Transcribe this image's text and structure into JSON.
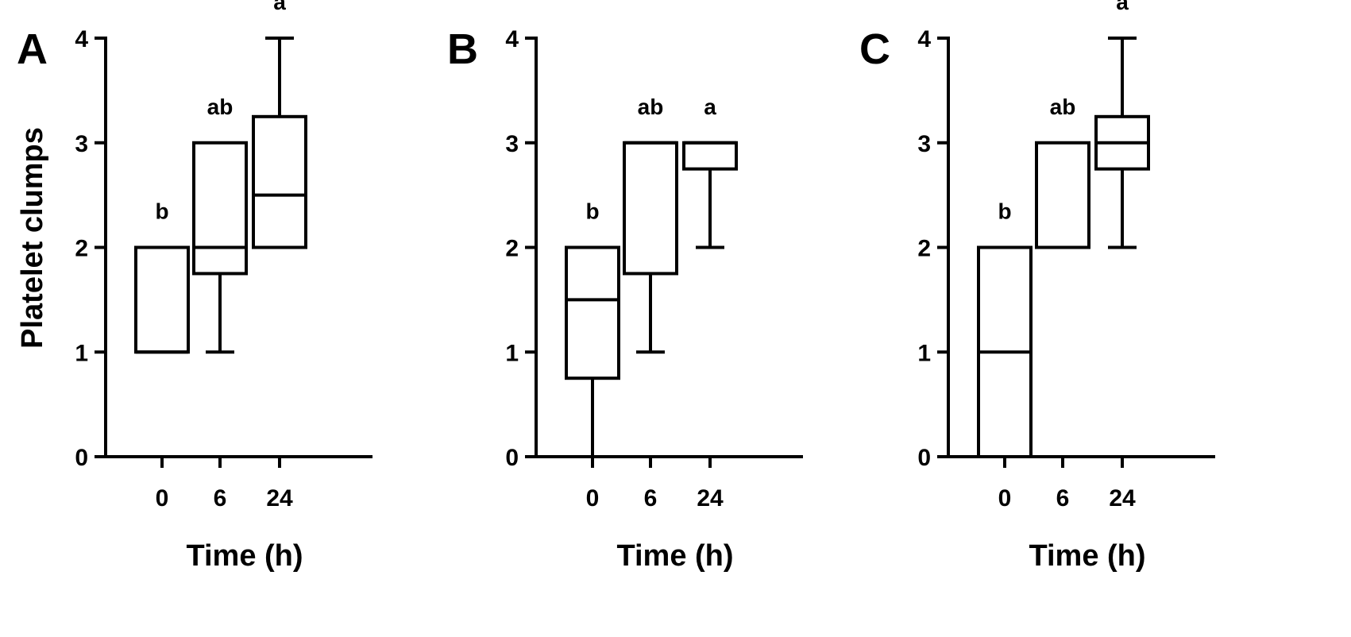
{
  "chart_data": [
    {
      "type": "box",
      "panel_label": "A",
      "xlabel": "Time (h)",
      "ylabel": "Platelet clumps",
      "categories": [
        "0",
        "6",
        "24"
      ],
      "ylim": [
        0,
        4
      ],
      "yticks": [
        "0",
        "1",
        "2",
        "3",
        "4"
      ],
      "boxes": [
        {
          "category": "0",
          "min": 1,
          "q1": 1,
          "median": 1,
          "q3": 2,
          "max": 2,
          "letter": "b"
        },
        {
          "category": "6",
          "min": 1,
          "q1": 1.75,
          "median": 2,
          "q3": 3,
          "max": 3,
          "letter": "ab"
        },
        {
          "category": "24",
          "min": 2,
          "q1": 2,
          "median": 2.5,
          "q3": 3.25,
          "max": 4,
          "letter": "a"
        }
      ]
    },
    {
      "type": "box",
      "panel_label": "B",
      "xlabel": "Time (h)",
      "ylabel": "",
      "categories": [
        "0",
        "6",
        "24"
      ],
      "ylim": [
        0,
        4
      ],
      "yticks": [
        "0",
        "1",
        "2",
        "3",
        "4"
      ],
      "boxes": [
        {
          "category": "0",
          "min": 0,
          "q1": 0.75,
          "median": 1.5,
          "q3": 2,
          "max": 2,
          "letter": "b"
        },
        {
          "category": "6",
          "min": 1,
          "q1": 1.75,
          "median": 3,
          "q3": 3,
          "max": 3,
          "letter": "ab"
        },
        {
          "category": "24",
          "min": 2,
          "q1": 2.75,
          "median": 3,
          "q3": 3,
          "max": 3,
          "letter": "a"
        }
      ]
    },
    {
      "type": "box",
      "panel_label": "C",
      "xlabel": "Time (h)",
      "ylabel": "",
      "categories": [
        "0",
        "6",
        "24"
      ],
      "ylim": [
        0,
        4
      ],
      "yticks": [
        "0",
        "1",
        "2",
        "3",
        "4"
      ],
      "boxes": [
        {
          "category": "0",
          "min": 0,
          "q1": 0,
          "median": 1,
          "q3": 2,
          "max": 2,
          "letter": "b"
        },
        {
          "category": "6",
          "min": 2,
          "q1": 2,
          "median": 2,
          "q3": 3,
          "max": 3,
          "letter": "ab"
        },
        {
          "category": "24",
          "min": 2,
          "q1": 2.75,
          "median": 3,
          "q3": 3.25,
          "max": 4,
          "letter": "a"
        }
      ]
    }
  ]
}
